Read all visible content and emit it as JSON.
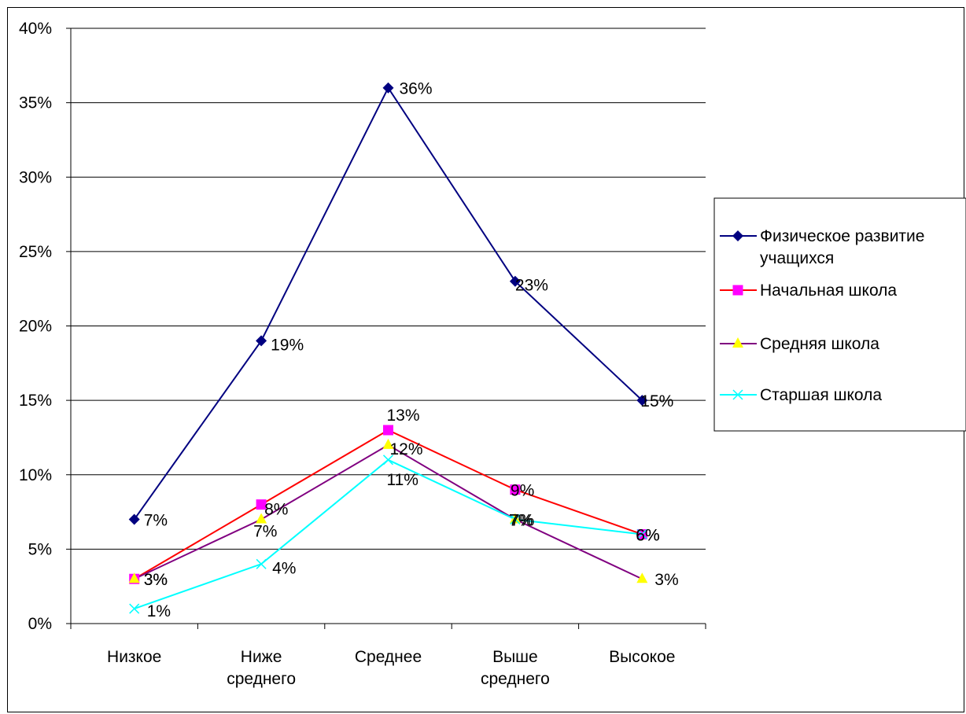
{
  "chart_data": {
    "type": "line",
    "title": "",
    "xlabel": "",
    "ylabel": "",
    "categories": [
      [
        "Низкое"
      ],
      [
        "Ниже",
        "среднего"
      ],
      [
        "Среднее"
      ],
      [
        "Выше",
        "среднего"
      ],
      [
        "Высокое"
      ]
    ],
    "ylim": [
      0,
      40
    ],
    "y_ticks": [
      0,
      5,
      10,
      15,
      20,
      25,
      30,
      35,
      40
    ],
    "y_tick_labels": [
      "0%",
      "5%",
      "10%",
      "15%",
      "20%",
      "25%",
      "30%",
      "35%",
      "40%"
    ],
    "grid": true,
    "legend_position": "right",
    "series": [
      {
        "name": [
          "Физическое развитие",
          "учащихся"
        ],
        "values": [
          7,
          19,
          36,
          23,
          15
        ],
        "labels": [
          "7%",
          "19%",
          "36%",
          "23%",
          "15%"
        ],
        "color": "#000080",
        "marker": "diamond"
      },
      {
        "name": [
          "Начальная школа"
        ],
        "values": [
          3,
          8,
          13,
          9,
          6
        ],
        "labels": [
          "3%",
          "8%",
          "13%",
          "9%",
          "6%"
        ],
        "color": "#ff0000",
        "marker": "square",
        "marker_color": "#ff00ff"
      },
      {
        "name": [
          "Средняя школа"
        ],
        "values": [
          3,
          7,
          12,
          7,
          3
        ],
        "labels": [
          "3%",
          "7%",
          "12%",
          "7%",
          "3%"
        ],
        "color": "#800080",
        "marker": "triangle",
        "marker_color": "#ffff00"
      },
      {
        "name": [
          "Старшая школа"
        ],
        "values": [
          1,
          4,
          11,
          7,
          6
        ],
        "labels": [
          "1%",
          "4%",
          "11%",
          "7%",
          "6%"
        ],
        "color": "#00ffff",
        "marker": "x"
      }
    ]
  }
}
